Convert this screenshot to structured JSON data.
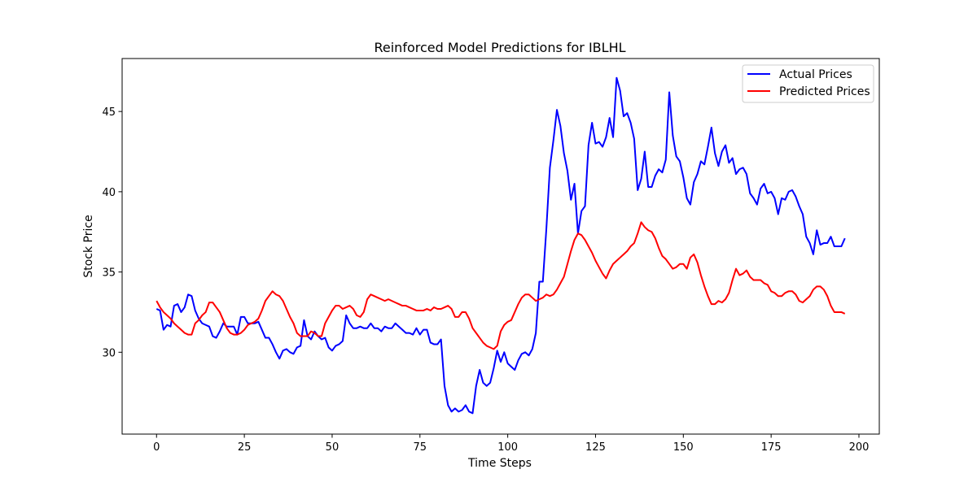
{
  "chart_data": {
    "type": "line",
    "title": "Reinforced Model Predictions for IBLHL",
    "xlabel": "Time Steps",
    "ylabel": "Stock Price",
    "xlim": [
      -9.8,
      205.8
    ],
    "ylim": [
      24.9,
      48.3
    ],
    "xticks": [
      0,
      25,
      50,
      75,
      100,
      125,
      150,
      175,
      200
    ],
    "yticks": [
      30,
      35,
      40,
      45
    ],
    "legend": "top-right",
    "grid": false,
    "series": [
      {
        "name": "Actual Prices",
        "color": "#0000ff",
        "x": [
          0,
          1,
          2,
          3,
          4,
          5,
          6,
          7,
          8,
          9,
          10,
          11,
          12,
          13,
          14,
          15,
          16,
          17,
          18,
          19,
          20,
          21,
          22,
          23,
          24,
          25,
          26,
          27,
          28,
          29,
          30,
          31,
          32,
          33,
          34,
          35,
          36,
          37,
          38,
          39,
          40,
          41,
          42,
          43,
          44,
          45,
          46,
          47,
          48,
          49,
          50,
          51,
          52,
          53,
          54,
          55,
          56,
          57,
          58,
          59,
          60,
          61,
          62,
          63,
          64,
          65,
          66,
          67,
          68,
          69,
          70,
          71,
          72,
          73,
          74,
          75,
          76,
          77,
          78,
          79,
          80,
          81,
          82,
          83,
          84,
          85,
          86,
          87,
          88,
          89,
          90,
          91,
          92,
          93,
          94,
          95,
          96,
          97,
          98,
          99,
          100,
          101,
          102,
          103,
          104,
          105,
          106,
          107,
          108,
          109,
          110,
          111,
          112,
          113,
          114,
          115,
          116,
          117,
          118,
          119,
          120,
          121,
          122,
          123,
          124,
          125,
          126,
          127,
          128,
          129,
          130,
          131,
          132,
          133,
          134,
          135,
          136,
          137,
          138,
          139,
          140,
          141,
          142,
          143,
          144,
          145,
          146,
          147,
          148,
          149,
          150,
          151,
          152,
          153,
          154,
          155,
          156,
          157,
          158,
          159,
          160,
          161,
          162,
          163,
          164,
          165,
          166,
          167,
          168,
          169,
          170,
          171,
          172,
          173,
          174,
          175,
          176,
          177,
          178,
          179,
          180,
          181,
          182,
          183,
          184,
          185,
          186,
          187,
          188,
          189,
          190,
          191,
          192,
          193,
          194,
          195,
          196
        ],
        "values": [
          32.7,
          32.6,
          31.4,
          31.7,
          31.6,
          32.9,
          33.0,
          32.5,
          32.8,
          33.6,
          33.5,
          32.6,
          32.1,
          31.8,
          31.7,
          31.6,
          31.0,
          30.9,
          31.3,
          31.8,
          31.6,
          31.6,
          31.6,
          31.1,
          32.2,
          32.2,
          31.8,
          31.8,
          31.8,
          31.9,
          31.4,
          30.9,
          30.9,
          30.5,
          30.0,
          29.6,
          30.1,
          30.2,
          30.0,
          29.9,
          30.3,
          30.4,
          32.0,
          31.0,
          30.8,
          31.3,
          31.0,
          30.8,
          30.9,
          30.3,
          30.1,
          30.4,
          30.5,
          30.7,
          32.3,
          31.8,
          31.5,
          31.5,
          31.6,
          31.5,
          31.5,
          31.8,
          31.5,
          31.5,
          31.3,
          31.6,
          31.5,
          31.5,
          31.8,
          31.6,
          31.4,
          31.2,
          31.2,
          31.1,
          31.5,
          31.1,
          31.4,
          31.4,
          30.6,
          30.5,
          30.5,
          30.8,
          27.9,
          26.7,
          26.3,
          26.5,
          26.3,
          26.4,
          26.7,
          26.3,
          26.2,
          27.9,
          28.9,
          28.1,
          27.9,
          28.1,
          29.0,
          30.1,
          29.4,
          30.0,
          29.3,
          29.1,
          28.9,
          29.5,
          29.9,
          30.0,
          29.8,
          30.2,
          31.2,
          34.4,
          34.4,
          37.7,
          41.5,
          43.2,
          45.1,
          44.1,
          42.4,
          41.3,
          39.5,
          40.5,
          37.4,
          38.8,
          39.1,
          42.9,
          44.3,
          43.0,
          43.1,
          42.8,
          43.4,
          44.6,
          43.4,
          47.1,
          46.3,
          44.7,
          44.9,
          44.3,
          43.3,
          40.1,
          40.8,
          42.5,
          40.3,
          40.3,
          41.0,
          41.4,
          41.2,
          42.0,
          46.2,
          43.5,
          42.2,
          41.9,
          40.9,
          39.6,
          39.2,
          40.6,
          41.1,
          41.9,
          41.7,
          42.8,
          44.0,
          42.4,
          41.6,
          42.5,
          42.9,
          41.8,
          42.1,
          41.1,
          41.4,
          41.5,
          41.1,
          39.9,
          39.6,
          39.2,
          40.2,
          40.5,
          39.9,
          40.0,
          39.6,
          38.6,
          39.6,
          39.5,
          40.0,
          40.1,
          39.7,
          39.1,
          38.6,
          37.2,
          36.8,
          36.1,
          37.6,
          36.7,
          36.8,
          36.8,
          37.2,
          36.6,
          36.6,
          36.6,
          37.1
        ]
      },
      {
        "name": "Predicted Prices",
        "color": "#ff0000",
        "x": [
          0,
          1,
          2,
          3,
          4,
          5,
          6,
          7,
          8,
          9,
          10,
          11,
          12,
          13,
          14,
          15,
          16,
          17,
          18,
          19,
          20,
          21,
          22,
          23,
          24,
          25,
          26,
          27,
          28,
          29,
          30,
          31,
          32,
          33,
          34,
          35,
          36,
          37,
          38,
          39,
          40,
          41,
          42,
          43,
          44,
          45,
          46,
          47,
          48,
          49,
          50,
          51,
          52,
          53,
          54,
          55,
          56,
          57,
          58,
          59,
          60,
          61,
          62,
          63,
          64,
          65,
          66,
          67,
          68,
          69,
          70,
          71,
          72,
          73,
          74,
          75,
          76,
          77,
          78,
          79,
          80,
          81,
          82,
          83,
          84,
          85,
          86,
          87,
          88,
          89,
          90,
          91,
          92,
          93,
          94,
          95,
          96,
          97,
          98,
          99,
          100,
          101,
          102,
          103,
          104,
          105,
          106,
          107,
          108,
          109,
          110,
          111,
          112,
          113,
          114,
          115,
          116,
          117,
          118,
          119,
          120,
          121,
          122,
          123,
          124,
          125,
          126,
          127,
          128,
          129,
          130,
          131,
          132,
          133,
          134,
          135,
          136,
          137,
          138,
          139,
          140,
          141,
          142,
          143,
          144,
          145,
          146,
          147,
          148,
          149,
          150,
          151,
          152,
          153,
          154,
          155,
          156,
          157,
          158,
          159,
          160,
          161,
          162,
          163,
          164,
          165,
          166,
          167,
          168,
          169,
          170,
          171,
          172,
          173,
          174,
          175,
          176,
          177,
          178,
          179,
          180,
          181,
          182,
          183,
          184,
          185,
          186,
          187,
          188,
          189,
          190,
          191,
          192,
          193,
          194,
          195,
          196
        ],
        "values": [
          33.2,
          32.8,
          32.5,
          32.3,
          32.1,
          31.8,
          31.6,
          31.4,
          31.2,
          31.1,
          31.1,
          31.8,
          32.0,
          32.3,
          32.5,
          33.1,
          33.1,
          32.8,
          32.5,
          32.0,
          31.5,
          31.2,
          31.1,
          31.1,
          31.2,
          31.4,
          31.7,
          31.8,
          31.9,
          32.1,
          32.6,
          33.2,
          33.5,
          33.8,
          33.6,
          33.5,
          33.2,
          32.7,
          32.2,
          31.8,
          31.2,
          31.0,
          31.0,
          31.0,
          31.3,
          31.2,
          31.0,
          31.0,
          31.8,
          32.2,
          32.6,
          32.9,
          32.9,
          32.7,
          32.8,
          32.9,
          32.7,
          32.3,
          32.2,
          32.5,
          33.3,
          33.6,
          33.5,
          33.4,
          33.3,
          33.2,
          33.3,
          33.2,
          33.1,
          33.0,
          32.9,
          32.9,
          32.8,
          32.7,
          32.6,
          32.6,
          32.6,
          32.7,
          32.6,
          32.8,
          32.7,
          32.7,
          32.8,
          32.9,
          32.7,
          32.2,
          32.2,
          32.5,
          32.5,
          32.1,
          31.5,
          31.2,
          30.9,
          30.6,
          30.4,
          30.3,
          30.2,
          30.4,
          31.3,
          31.7,
          31.9,
          32.0,
          32.5,
          33.0,
          33.4,
          33.6,
          33.6,
          33.4,
          33.2,
          33.3,
          33.4,
          33.6,
          33.5,
          33.6,
          33.9,
          34.3,
          34.7,
          35.5,
          36.3,
          37.0,
          37.4,
          37.3,
          37.0,
          36.6,
          36.2,
          35.7,
          35.3,
          34.9,
          34.6,
          35.1,
          35.5,
          35.7,
          35.9,
          36.1,
          36.3,
          36.6,
          36.8,
          37.4,
          38.1,
          37.8,
          37.6,
          37.5,
          37.1,
          36.5,
          36.0,
          35.8,
          35.5,
          35.2,
          35.3,
          35.5,
          35.5,
          35.2,
          35.9,
          36.1,
          35.6,
          34.8,
          34.1,
          33.5,
          33.0,
          33.0,
          33.2,
          33.1,
          33.3,
          33.7,
          34.5,
          35.2,
          34.8,
          34.9,
          35.1,
          34.7,
          34.5,
          34.5,
          34.5,
          34.3,
          34.2,
          33.8,
          33.7,
          33.5,
          33.5,
          33.7,
          33.8,
          33.8,
          33.6,
          33.2,
          33.1,
          33.3,
          33.5,
          33.9,
          34.1,
          34.1,
          33.9,
          33.5,
          32.9,
          32.5,
          32.5,
          32.5,
          32.4
        ]
      }
    ]
  }
}
